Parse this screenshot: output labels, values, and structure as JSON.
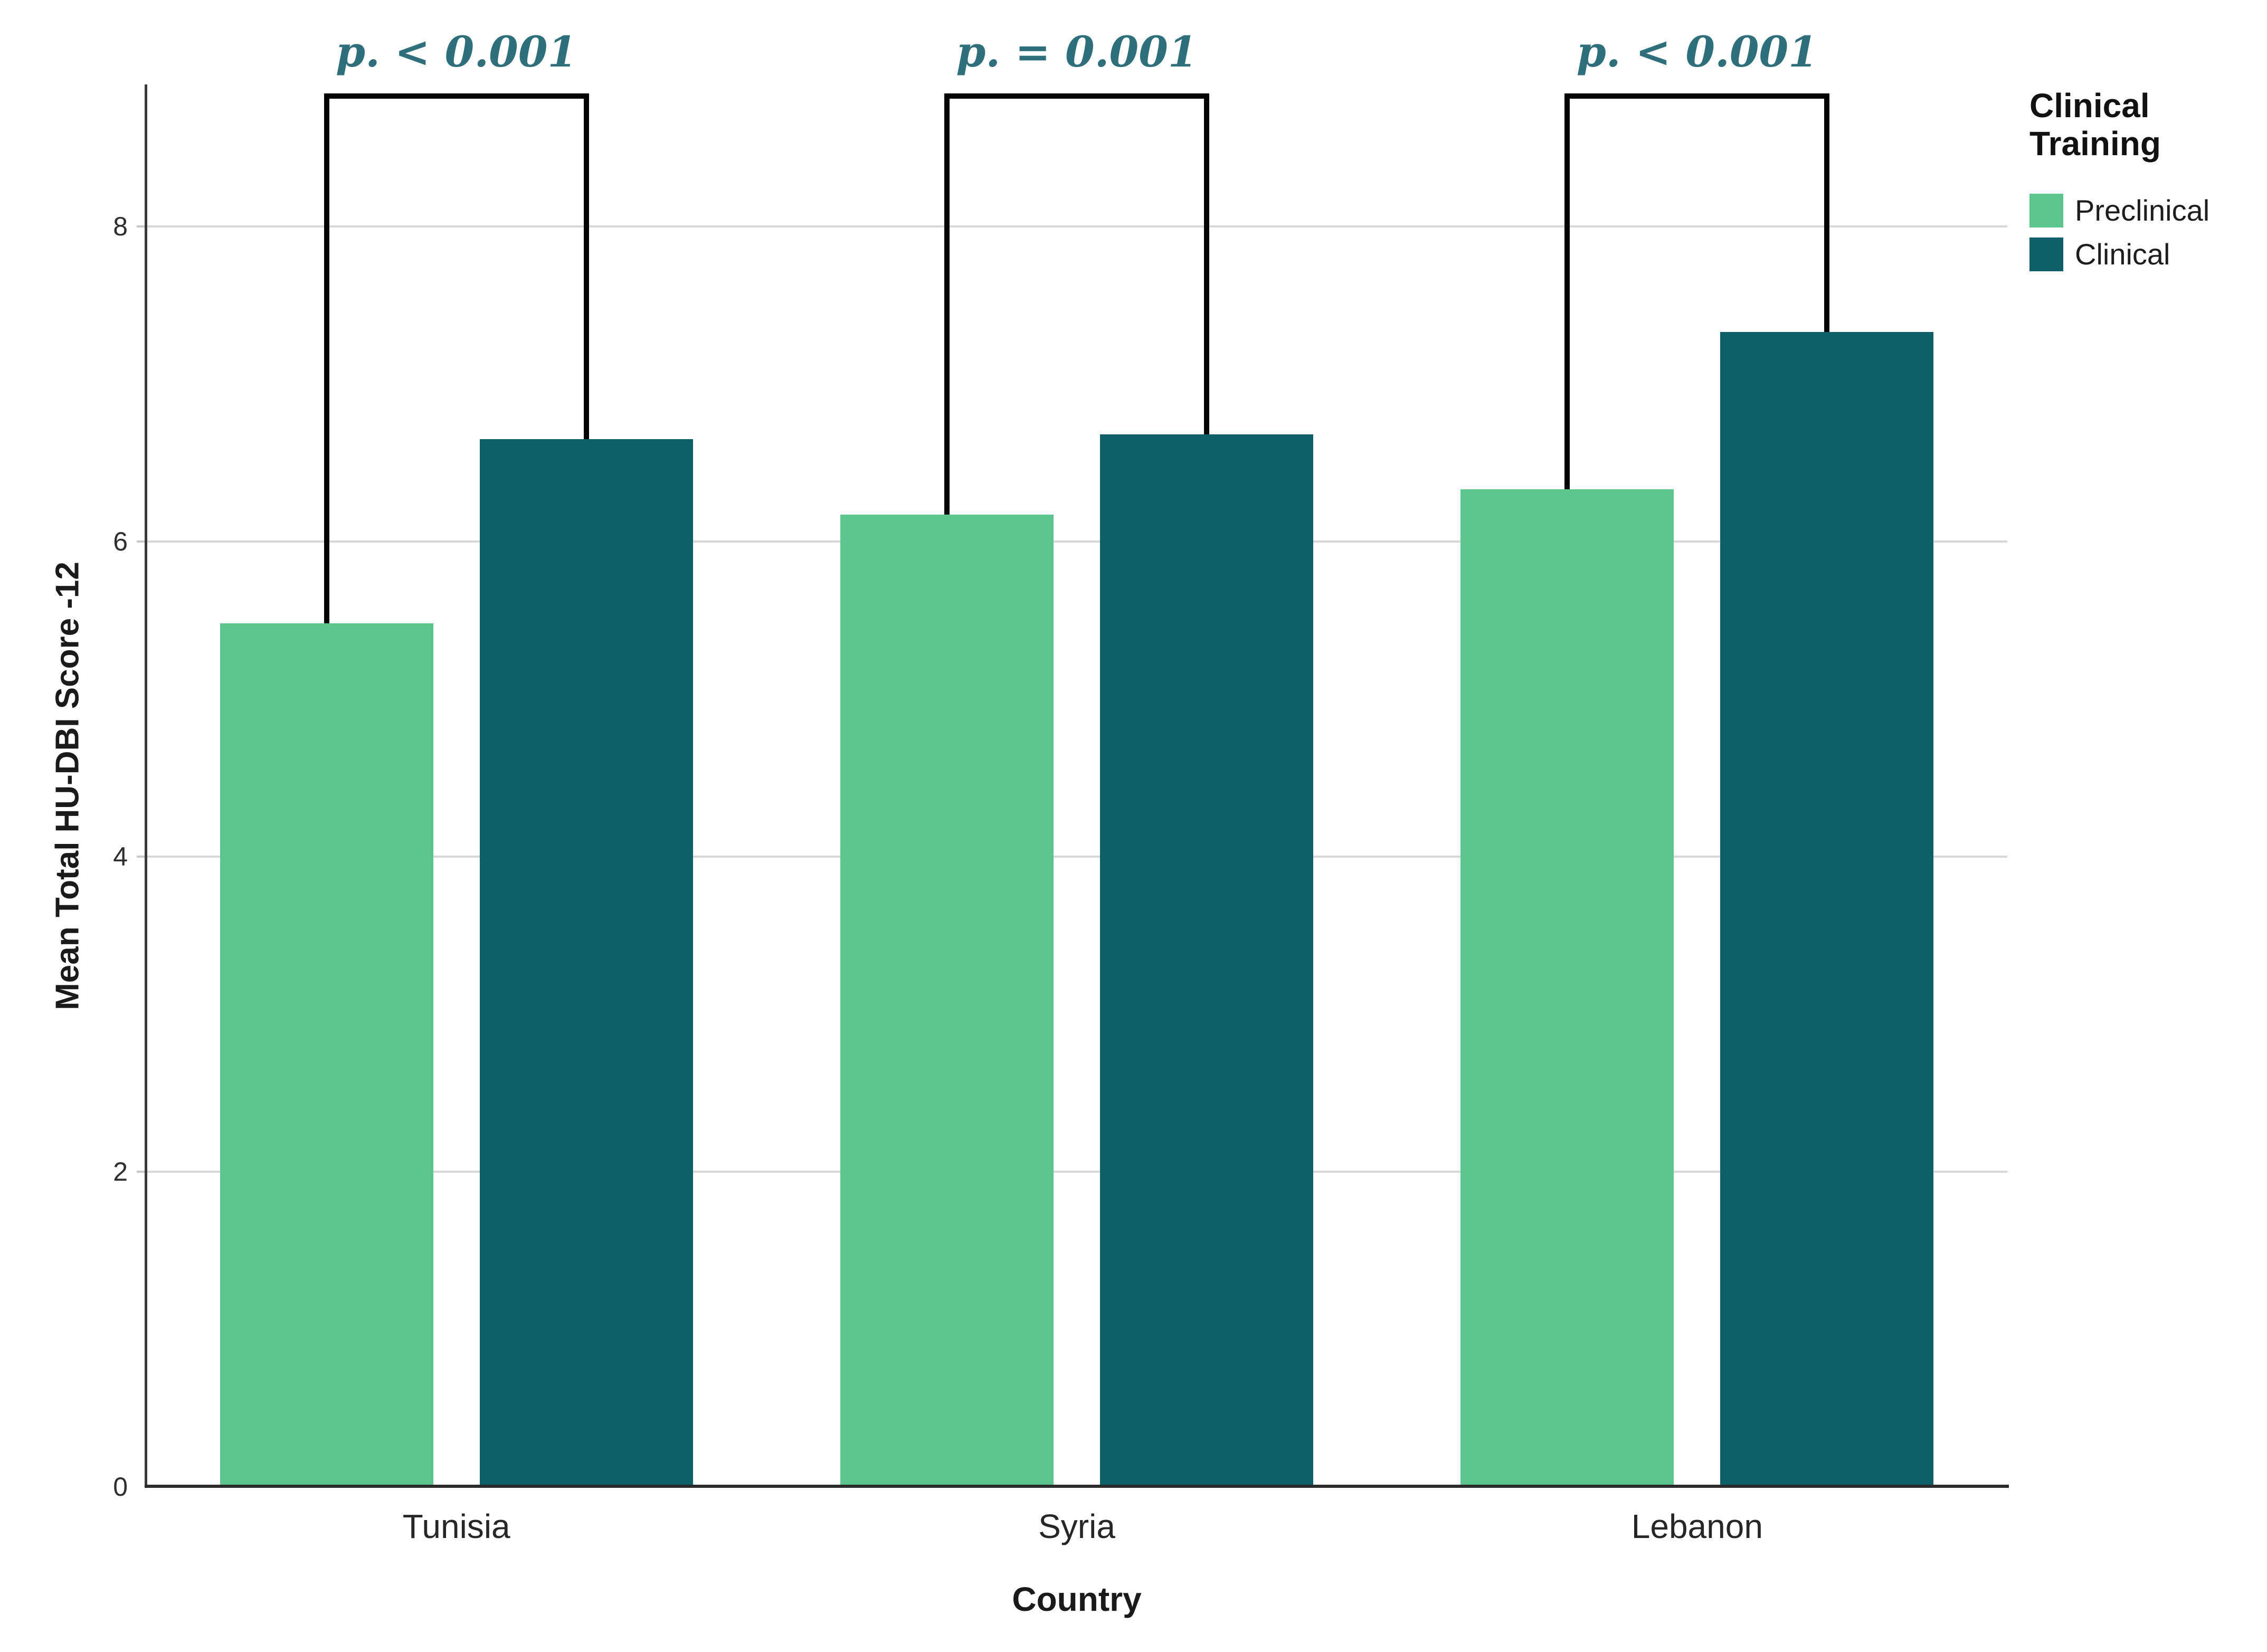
{
  "chart_data": {
    "type": "bar",
    "title": "",
    "xlabel": "Country",
    "ylabel": "Mean Total HU-DBI Score -12",
    "categories": [
      "Tunisia",
      "Syria",
      "Lebanon"
    ],
    "series": [
      {
        "name": "Preclinical",
        "color": "#5CC48C",
        "values": [
          5.48,
          6.17,
          6.33
        ]
      },
      {
        "name": "Clinical",
        "color": "#0E5F68",
        "values": [
          6.65,
          6.68,
          7.33
        ]
      }
    ],
    "yticks": [
      0,
      2,
      4,
      6,
      8
    ],
    "ylim": [
      0,
      8.9
    ],
    "grid": "horizontal",
    "legend": {
      "title": "Clinical Training",
      "position": "top-right",
      "entries": [
        "Preclinical",
        "Clinical"
      ]
    },
    "annotations": [
      {
        "text": "p. < 0.001",
        "category": "Tunisia"
      },
      {
        "text": "p. = 0.001",
        "category": "Syria"
      },
      {
        "text": "p. < 0.001",
        "category": "Lebanon"
      }
    ],
    "colors": {
      "annotation_text": "#2E6F7B",
      "gridline": "#D8D8D8",
      "axis": "#2B2B2B",
      "bracket": "#050505"
    }
  }
}
